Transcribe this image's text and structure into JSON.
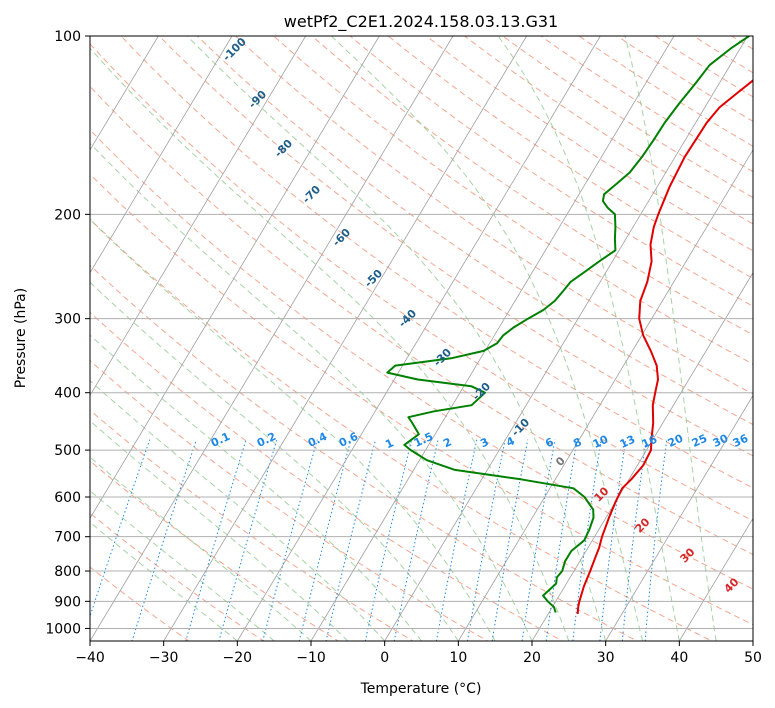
{
  "chart_data": {
    "type": "line",
    "subtype": "skew-t log-p sounding",
    "title": "wetPf2_C2E1.2024.158.03.13.G31",
    "xlabel": "Temperature (°C)",
    "ylabel": "Pressure (hPa)",
    "xlim": [
      -40,
      50
    ],
    "ylim": [
      1050,
      100
    ],
    "y_scale": "log",
    "x_ticks": [
      -40,
      -30,
      -20,
      -10,
      0,
      10,
      20,
      30,
      40,
      50
    ],
    "x_tick_labels": [
      "−40",
      "−30",
      "−20",
      "−10",
      "0",
      "10",
      "20",
      "30",
      "40",
      "50"
    ],
    "y_ticks": [
      100,
      200,
      300,
      400,
      500,
      600,
      700,
      800,
      900,
      1000
    ],
    "y_tick_labels": [
      "100",
      "200",
      "300",
      "400",
      "500",
      "600",
      "700",
      "800",
      "900",
      "1000"
    ],
    "grid": true,
    "colors": {
      "temperature": "#e00000",
      "dewpoint": "#008000",
      "dry_adiabat": "#f08060",
      "moist_adiabat": "#90c890",
      "mixing_ratio": "#1e88e5",
      "isotherm": "#a0a0a0",
      "dry_label": "#1f5f8b",
      "moist_label": "#d62728",
      "zero_label": "#777777"
    },
    "series": [
      {
        "key": "temperature",
        "points": [
          [
            24.0,
            945
          ],
          [
            23.5,
            920
          ],
          [
            23.2,
            900
          ],
          [
            22.6,
            850
          ],
          [
            22.2,
            800
          ],
          [
            21.8,
            760
          ],
          [
            21.5,
            730
          ],
          [
            21.0,
            700
          ],
          [
            20.4,
            650
          ],
          [
            20.0,
            610
          ],
          [
            19.8,
            580
          ],
          [
            20.3,
            560
          ],
          [
            20.8,
            530
          ],
          [
            20.6,
            500
          ],
          [
            19.8,
            480
          ],
          [
            18.7,
            450
          ],
          [
            17.2,
            420
          ],
          [
            16.5,
            400
          ],
          [
            15.8,
            380
          ],
          [
            14.5,
            360
          ],
          [
            12.5,
            340
          ],
          [
            10.2,
            320
          ],
          [
            8.3,
            300
          ],
          [
            7.0,
            280
          ],
          [
            6.4,
            260
          ],
          [
            5.3,
            240
          ],
          [
            3.8,
            225
          ],
          [
            2.8,
            210
          ],
          [
            2.4,
            200
          ],
          [
            1.7,
            180
          ],
          [
            1.3,
            160
          ],
          [
            1.4,
            150
          ],
          [
            1.5,
            140
          ],
          [
            2.0,
            132
          ],
          [
            3.2,
            125
          ],
          [
            4.5,
            118
          ],
          [
            5.5,
            110
          ],
          [
            6.2,
            105
          ],
          [
            6.6,
            100
          ]
        ]
      },
      {
        "key": "dewpoint",
        "points": [
          [
            20.9,
            940
          ],
          [
            20.2,
            920
          ],
          [
            18.9,
            900
          ],
          [
            17.8,
            880
          ],
          [
            18.2,
            860
          ],
          [
            18.6,
            840
          ],
          [
            18.2,
            820
          ],
          [
            18.4,
            800
          ],
          [
            18.0,
            770
          ],
          [
            18.0,
            740
          ],
          [
            18.9,
            710
          ],
          [
            18.7,
            680
          ],
          [
            18.3,
            650
          ],
          [
            17.6,
            630
          ],
          [
            15.4,
            600
          ],
          [
            13.2,
            580
          ],
          [
            5.3,
            560
          ],
          [
            -4.4,
            540
          ],
          [
            -9.0,
            520
          ],
          [
            -12.0,
            500
          ],
          [
            -13.3,
            490
          ],
          [
            -12.2,
            470
          ],
          [
            -14.0,
            450
          ],
          [
            -15.0,
            440
          ],
          [
            -12.0,
            430
          ],
          [
            -7.4,
            420
          ],
          [
            -6.6,
            400
          ],
          [
            -9.0,
            390
          ],
          [
            -16.8,
            380
          ],
          [
            -21.5,
            370
          ],
          [
            -21.0,
            360
          ],
          [
            -14.0,
            350
          ],
          [
            -10.2,
            340
          ],
          [
            -9.0,
            330
          ],
          [
            -8.8,
            320
          ],
          [
            -8.0,
            310
          ],
          [
            -6.8,
            300
          ],
          [
            -5.4,
            290
          ],
          [
            -4.6,
            280
          ],
          [
            -4.3,
            270
          ],
          [
            -4.0,
            260
          ],
          [
            -2.9,
            250
          ],
          [
            -1.8,
            240
          ],
          [
            -0.5,
            230
          ],
          [
            -1.5,
            220
          ],
          [
            -2.4,
            210
          ],
          [
            -3.5,
            200
          ],
          [
            -5.0,
            195
          ],
          [
            -6.2,
            190
          ],
          [
            -6.6,
            185
          ],
          [
            -5.8,
            178
          ],
          [
            -4.9,
            170
          ],
          [
            -4.5,
            160
          ],
          [
            -4.3,
            150
          ],
          [
            -4.2,
            140
          ],
          [
            -3.8,
            130
          ],
          [
            -3.2,
            120
          ],
          [
            -2.8,
            112
          ],
          [
            -1.3,
            105
          ],
          [
            0.2,
            100
          ]
        ]
      }
    ],
    "dry_adiabat_labels": [
      "-100",
      "-90",
      "-80",
      "-70",
      "-60",
      "-50",
      "-40",
      "-30",
      "-20",
      "-10"
    ],
    "moist_adiabat_labels": [
      "0",
      "10",
      "20",
      "30",
      "40"
    ],
    "mixing_ratio_labels": [
      "0.1",
      "0.2",
      "0.4",
      "0.6",
      "1",
      "1.5",
      "2",
      "3",
      "4",
      "6",
      "8",
      "10",
      "13",
      "16",
      "20",
      "25",
      "30",
      "36"
    ]
  }
}
